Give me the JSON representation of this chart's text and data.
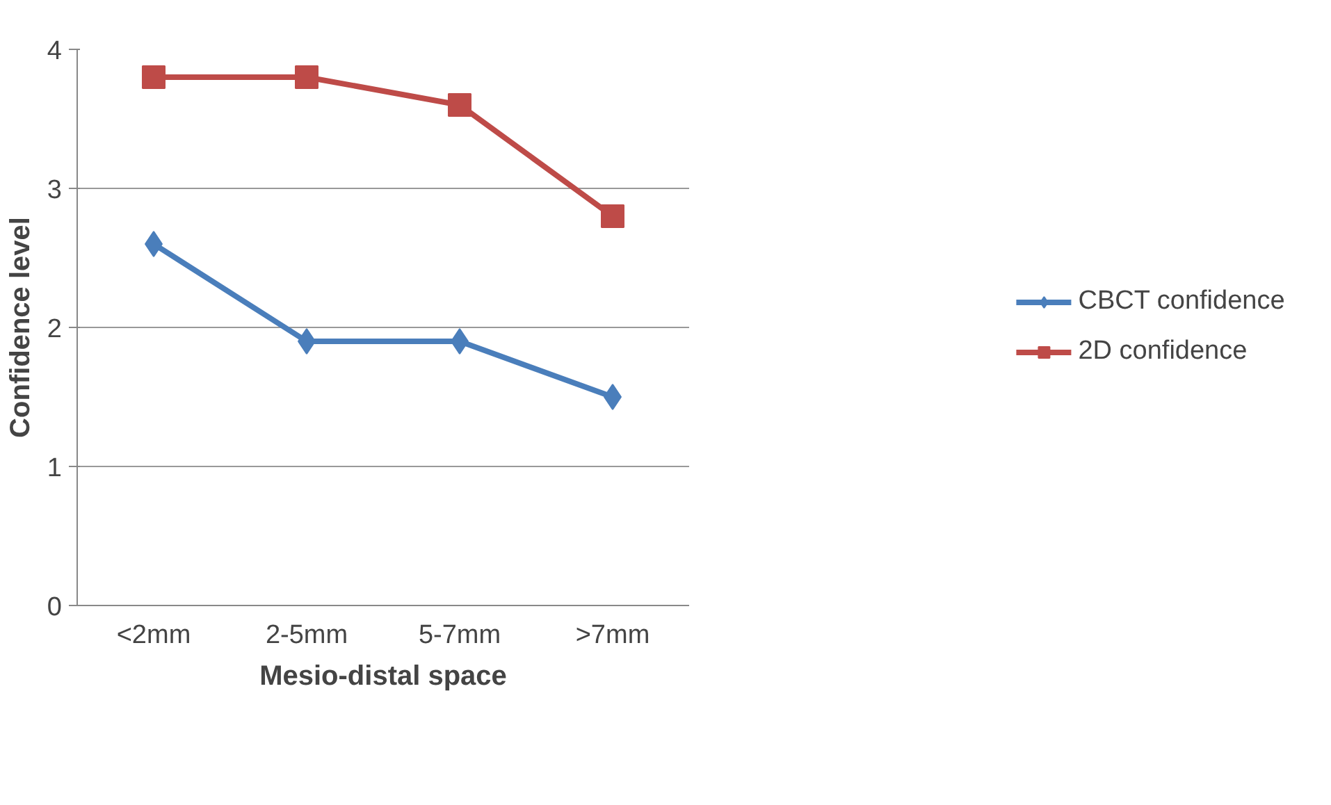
{
  "chart_data": {
    "type": "line",
    "xlabel": "Mesio-distal space",
    "ylabel": "Confidence level",
    "categories": [
      "<2mm",
      "2-5mm",
      "5-7mm",
      ">7mm"
    ],
    "series": [
      {
        "name": "CBCT confidence",
        "color": "#4a7ebb",
        "marker": "diamond",
        "values": [
          2.6,
          1.9,
          1.9,
          1.5
        ]
      },
      {
        "name": "2D confidence",
        "color": "#be4b48",
        "marker": "square",
        "values": [
          3.8,
          3.8,
          3.6,
          2.8
        ]
      }
    ],
    "ylim": [
      0,
      4
    ],
    "yticks": [
      0,
      1,
      2,
      3,
      4
    ],
    "grid": "y",
    "legend": "right"
  }
}
